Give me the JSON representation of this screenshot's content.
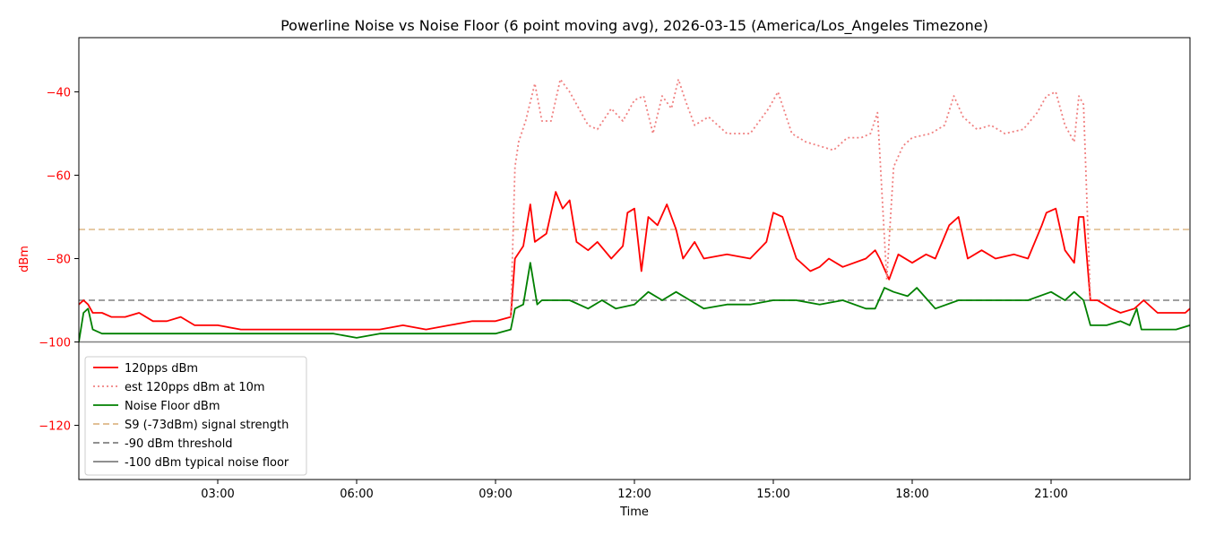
{
  "chart_data": {
    "type": "line",
    "title": "Powerline Noise vs Noise Floor (6 point moving avg), 2026-03-15 (America/Los_Angeles Timezone)",
    "xlabel": "Time",
    "ylabel": "dBm",
    "x_unit": "hours",
    "xlim": [
      0,
      24
    ],
    "ylim": [
      -133,
      -27
    ],
    "x_ticks": [
      {
        "value": 3,
        "label": "03:00"
      },
      {
        "value": 6,
        "label": "06:00"
      },
      {
        "value": 9,
        "label": "09:00"
      },
      {
        "value": 12,
        "label": "12:00"
      },
      {
        "value": 15,
        "label": "15:00"
      },
      {
        "value": 18,
        "label": "18:00"
      },
      {
        "value": 21,
        "label": "21:00"
      }
    ],
    "y_ticks": [
      {
        "value": -40,
        "label": "−40"
      },
      {
        "value": -60,
        "label": "−60"
      },
      {
        "value": -80,
        "label": "−80"
      },
      {
        "value": -100,
        "label": "−100"
      },
      {
        "value": -120,
        "label": "−120"
      }
    ],
    "ylabel_color": "#ff0000",
    "grid": false,
    "legend_position": "lower-left",
    "series": [
      {
        "name": "120pps dBm",
        "color": "#ff0000",
        "style": "solid",
        "points": [
          [
            0,
            -91
          ],
          [
            0.1,
            -90
          ],
          [
            0.2,
            -91
          ],
          [
            0.3,
            -93
          ],
          [
            0.5,
            -93
          ],
          [
            0.7,
            -94
          ],
          [
            1.0,
            -94
          ],
          [
            1.3,
            -93
          ],
          [
            1.6,
            -95
          ],
          [
            1.9,
            -95
          ],
          [
            2.2,
            -94
          ],
          [
            2.5,
            -96
          ],
          [
            3.0,
            -96
          ],
          [
            3.5,
            -97
          ],
          [
            4.0,
            -97
          ],
          [
            4.5,
            -97
          ],
          [
            5.0,
            -97
          ],
          [
            5.5,
            -97
          ],
          [
            6.0,
            -97
          ],
          [
            6.5,
            -97
          ],
          [
            7.0,
            -96
          ],
          [
            7.5,
            -97
          ],
          [
            8.0,
            -96
          ],
          [
            8.5,
            -95
          ],
          [
            9.0,
            -95
          ],
          [
            9.33,
            -94
          ],
          [
            9.42,
            -80
          ],
          [
            9.6,
            -77
          ],
          [
            9.75,
            -67
          ],
          [
            9.85,
            -76
          ],
          [
            10.1,
            -74
          ],
          [
            10.3,
            -64
          ],
          [
            10.45,
            -68
          ],
          [
            10.6,
            -66
          ],
          [
            10.75,
            -76
          ],
          [
            11.0,
            -78
          ],
          [
            11.2,
            -76
          ],
          [
            11.5,
            -80
          ],
          [
            11.75,
            -77
          ],
          [
            11.85,
            -69
          ],
          [
            12.0,
            -68
          ],
          [
            12.15,
            -83
          ],
          [
            12.3,
            -70
          ],
          [
            12.5,
            -72
          ],
          [
            12.7,
            -67
          ],
          [
            12.9,
            -73
          ],
          [
            13.05,
            -80
          ],
          [
            13.3,
            -76
          ],
          [
            13.5,
            -80
          ],
          [
            14.0,
            -79
          ],
          [
            14.5,
            -80
          ],
          [
            14.85,
            -76
          ],
          [
            15.0,
            -69
          ],
          [
            15.2,
            -70
          ],
          [
            15.5,
            -80
          ],
          [
            15.8,
            -83
          ],
          [
            16.0,
            -82
          ],
          [
            16.2,
            -80
          ],
          [
            16.5,
            -82
          ],
          [
            17.0,
            -80
          ],
          [
            17.2,
            -78
          ],
          [
            17.3,
            -80
          ],
          [
            17.5,
            -85
          ],
          [
            17.7,
            -79
          ],
          [
            18.0,
            -81
          ],
          [
            18.3,
            -79
          ],
          [
            18.5,
            -80
          ],
          [
            18.8,
            -72
          ],
          [
            19.0,
            -70
          ],
          [
            19.2,
            -80
          ],
          [
            19.5,
            -78
          ],
          [
            19.8,
            -80
          ],
          [
            20.2,
            -79
          ],
          [
            20.5,
            -80
          ],
          [
            20.8,
            -72
          ],
          [
            20.9,
            -69
          ],
          [
            21.1,
            -68
          ],
          [
            21.3,
            -78
          ],
          [
            21.5,
            -81
          ],
          [
            21.6,
            -70
          ],
          [
            21.7,
            -70
          ],
          [
            21.85,
            -90
          ],
          [
            22.0,
            -90
          ],
          [
            22.3,
            -92
          ],
          [
            22.5,
            -93
          ],
          [
            22.8,
            -92
          ],
          [
            23.0,
            -90
          ],
          [
            23.3,
            -93
          ],
          [
            23.6,
            -93
          ],
          [
            23.9,
            -93
          ],
          [
            24.0,
            -92
          ]
        ]
      },
      {
        "name": "est 120pps dBm at 10m",
        "color": "#f08080",
        "style": "dotted",
        "points": [
          [
            9.33,
            -94
          ],
          [
            9.42,
            -58
          ],
          [
            9.5,
            -52
          ],
          [
            9.65,
            -47
          ],
          [
            9.85,
            -38
          ],
          [
            10.0,
            -47
          ],
          [
            10.2,
            -47
          ],
          [
            10.4,
            -37
          ],
          [
            10.6,
            -40
          ],
          [
            10.8,
            -44
          ],
          [
            11.0,
            -48
          ],
          [
            11.2,
            -49
          ],
          [
            11.5,
            -44
          ],
          [
            11.75,
            -47
          ],
          [
            12.0,
            -42
          ],
          [
            12.2,
            -41
          ],
          [
            12.4,
            -50
          ],
          [
            12.6,
            -41
          ],
          [
            12.8,
            -44
          ],
          [
            12.95,
            -37
          ],
          [
            13.1,
            -42
          ],
          [
            13.3,
            -48
          ],
          [
            13.6,
            -46
          ],
          [
            14.0,
            -50
          ],
          [
            14.5,
            -50
          ],
          [
            14.9,
            -44
          ],
          [
            15.1,
            -40
          ],
          [
            15.4,
            -50
          ],
          [
            15.7,
            -52
          ],
          [
            16.0,
            -53
          ],
          [
            16.3,
            -54
          ],
          [
            16.6,
            -51
          ],
          [
            16.9,
            -51
          ],
          [
            17.1,
            -50
          ],
          [
            17.25,
            -45
          ],
          [
            17.45,
            -85
          ],
          [
            17.6,
            -58
          ],
          [
            17.8,
            -53
          ],
          [
            18.0,
            -51
          ],
          [
            18.4,
            -50
          ],
          [
            18.7,
            -48
          ],
          [
            18.9,
            -41
          ],
          [
            19.1,
            -46
          ],
          [
            19.4,
            -49
          ],
          [
            19.7,
            -48
          ],
          [
            20.0,
            -50
          ],
          [
            20.4,
            -49
          ],
          [
            20.7,
            -45
          ],
          [
            20.9,
            -41
          ],
          [
            21.1,
            -40
          ],
          [
            21.3,
            -48
          ],
          [
            21.5,
            -52
          ],
          [
            21.6,
            -41
          ],
          [
            21.7,
            -43
          ],
          [
            21.85,
            -90
          ]
        ]
      },
      {
        "name": "Noise Floor dBm",
        "color": "#008000",
        "style": "solid",
        "points": [
          [
            0,
            -100
          ],
          [
            0.1,
            -93
          ],
          [
            0.2,
            -92
          ],
          [
            0.3,
            -97
          ],
          [
            0.5,
            -98
          ],
          [
            1.0,
            -98
          ],
          [
            1.5,
            -98
          ],
          [
            2.0,
            -98
          ],
          [
            2.5,
            -98
          ],
          [
            3.0,
            -98
          ],
          [
            3.5,
            -98
          ],
          [
            4.0,
            -98
          ],
          [
            4.5,
            -98
          ],
          [
            5.0,
            -98
          ],
          [
            5.5,
            -98
          ],
          [
            6.0,
            -99
          ],
          [
            6.5,
            -98
          ],
          [
            7.0,
            -98
          ],
          [
            7.5,
            -98
          ],
          [
            8.0,
            -98
          ],
          [
            8.5,
            -98
          ],
          [
            9.0,
            -98
          ],
          [
            9.33,
            -97
          ],
          [
            9.42,
            -92
          ],
          [
            9.6,
            -91
          ],
          [
            9.75,
            -81
          ],
          [
            9.9,
            -91
          ],
          [
            10.0,
            -90
          ],
          [
            10.3,
            -90
          ],
          [
            10.6,
            -90
          ],
          [
            11.0,
            -92
          ],
          [
            11.3,
            -90
          ],
          [
            11.6,
            -92
          ],
          [
            12.0,
            -91
          ],
          [
            12.3,
            -88
          ],
          [
            12.6,
            -90
          ],
          [
            12.9,
            -88
          ],
          [
            13.2,
            -90
          ],
          [
            13.5,
            -92
          ],
          [
            14.0,
            -91
          ],
          [
            14.5,
            -91
          ],
          [
            15.0,
            -90
          ],
          [
            15.5,
            -90
          ],
          [
            16.0,
            -91
          ],
          [
            16.5,
            -90
          ],
          [
            17.0,
            -92
          ],
          [
            17.2,
            -92
          ],
          [
            17.4,
            -87
          ],
          [
            17.6,
            -88
          ],
          [
            17.9,
            -89
          ],
          [
            18.1,
            -87
          ],
          [
            18.5,
            -92
          ],
          [
            19.0,
            -90
          ],
          [
            19.5,
            -90
          ],
          [
            20.0,
            -90
          ],
          [
            20.5,
            -90
          ],
          [
            21.0,
            -88
          ],
          [
            21.3,
            -90
          ],
          [
            21.5,
            -88
          ],
          [
            21.7,
            -90
          ],
          [
            21.85,
            -96
          ],
          [
            22.2,
            -96
          ],
          [
            22.5,
            -95
          ],
          [
            22.7,
            -96
          ],
          [
            22.85,
            -92
          ],
          [
            22.95,
            -97
          ],
          [
            23.3,
            -97
          ],
          [
            23.7,
            -97
          ],
          [
            24.0,
            -96
          ]
        ]
      }
    ],
    "reference_lines": [
      {
        "name": "S9 (-73dBm) signal strength",
        "y": -73,
        "color": "#deb887",
        "style": "dashed"
      },
      {
        "name": "-90 dBm threshold",
        "y": -90,
        "color": "#808080",
        "style": "dashed"
      },
      {
        "name": "-100 dBm typical noise floor",
        "y": -100,
        "color": "#808080",
        "style": "solid"
      }
    ]
  }
}
